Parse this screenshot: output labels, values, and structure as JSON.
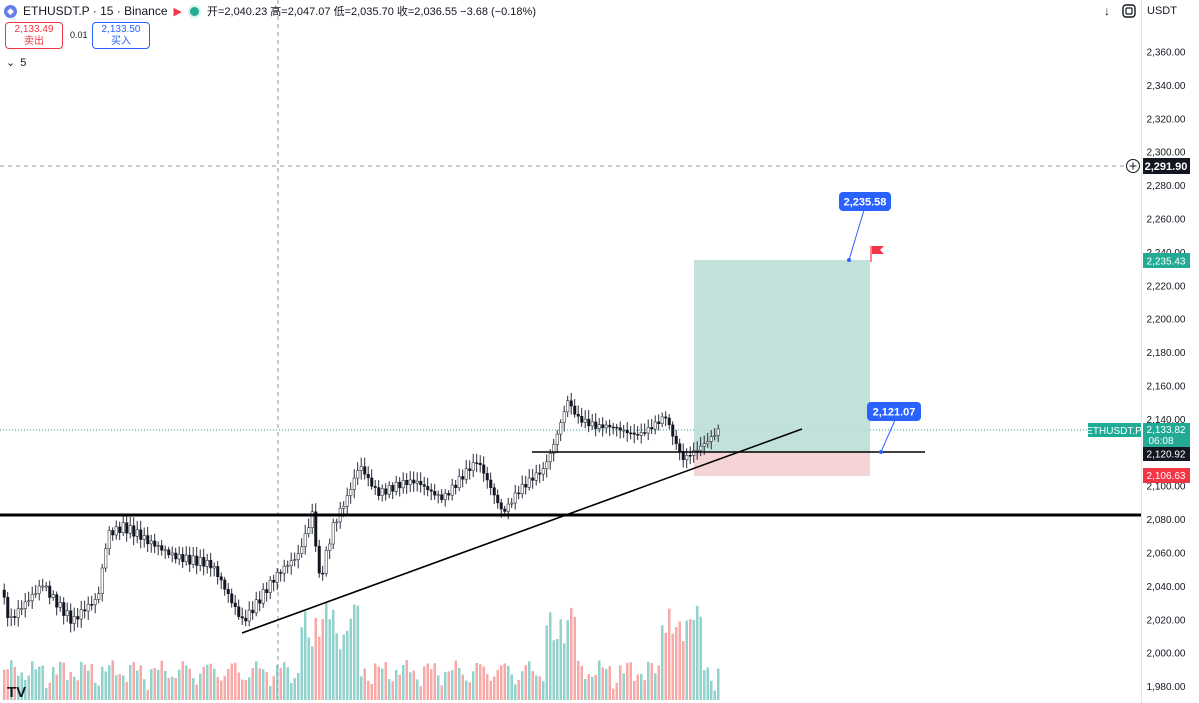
{
  "header": {
    "symbol_icon": "ethereum-icon",
    "title": "ETHUSDT.P · 15 · Binance",
    "ohlc": "开=2,040.23 高=2,047.07 低=2,035.70 收=2,036.55 −3.68 (−0.18%)"
  },
  "trade": {
    "sell_price": "2,133.49",
    "sell_label": "卖出",
    "spread": "0.01",
    "buy_price": "2,133.50",
    "buy_label": "买入"
  },
  "indicators": {
    "toggle_icon": "chevron-down-icon",
    "count": "5"
  },
  "toolbar": {
    "download_icon": "arrow-down-icon",
    "fullscreen_icon": "fullscreen-icon",
    "currency": "USDT"
  },
  "axis": {
    "ticks": [
      "2,360.00",
      "2,340.00",
      "2,320.00",
      "2,300.00",
      "2,280.00",
      "2,260.00",
      "2,240.00",
      "2,220.00",
      "2,200.00",
      "2,180.00",
      "2,160.00",
      "2,140.00",
      "2,120.00",
      "2,100.00",
      "2,080.00",
      "2,060.00",
      "2,040.00",
      "2,020.00",
      "2,000.00",
      "1,980.00"
    ],
    "crosshair_price": "2,291.90",
    "crosshair_icon": "plus-circle-icon",
    "tp_price": "2,235.43",
    "last_symbol": "ETHUSDT.P",
    "last_price": "2,133.82",
    "countdown": "06:08",
    "entry_price": "2,120.92",
    "sl_price": "2,106.63"
  },
  "callouts": {
    "target": "2,235.58",
    "entry": "2,121.07"
  },
  "logo": "TV",
  "colors": {
    "up": "#26a69a",
    "down": "#ef5350",
    "tp_zone": "#bcded7",
    "sl_zone": "#f4cfd2",
    "callout": "#2962ff",
    "tp_label": "#22ab94",
    "sl_label": "#f23645"
  }
}
